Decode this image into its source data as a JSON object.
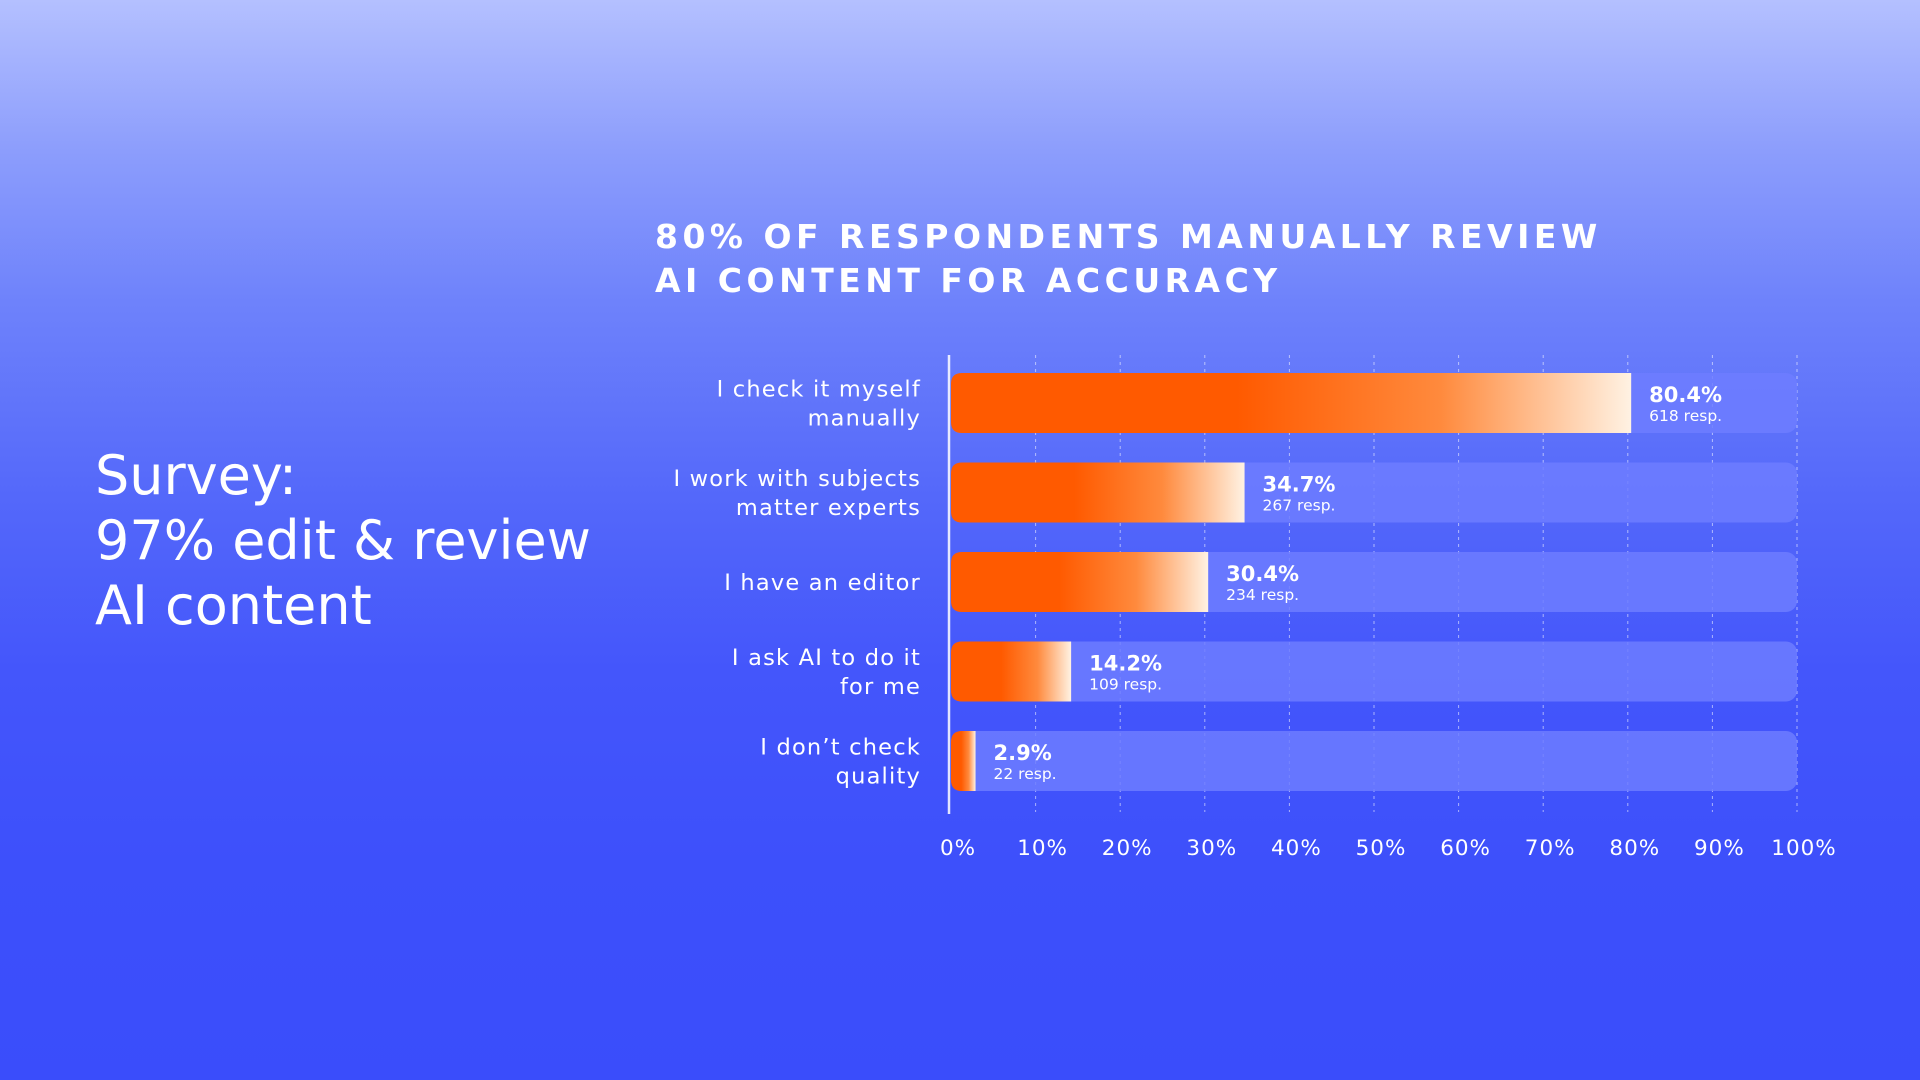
{
  "headline": {
    "lines": [
      "Survey:",
      "97% edit & review",
      "AI content"
    ]
  },
  "colors": {
    "background_top": "#b4c0ff",
    "background_bottom": "#3a4dfb",
    "bar_start": "#ff5a00",
    "bar_end": "#fff2e3",
    "track": "#6d7cff",
    "text": "#ffffff"
  },
  "chart_data": {
    "type": "bar",
    "orientation": "horizontal",
    "title": [
      "80% OF RESPONDENTS MANUALLY REVIEW",
      "AI CONTENT FOR ACCURACY"
    ],
    "categories": [
      [
        "I check it myself",
        "manually"
      ],
      [
        "I work with subjects",
        "matter experts"
      ],
      [
        "I have an editor"
      ],
      [
        "I ask AI to do it",
        "for me"
      ],
      [
        "I don’t check",
        "quality"
      ]
    ],
    "values": [
      80.4,
      34.7,
      30.4,
      14.2,
      2.9
    ],
    "value_labels": [
      "80.4%",
      "34.7%",
      "30.4%",
      "14.2%",
      "2.9%"
    ],
    "responses": [
      "618 resp.",
      "267 resp.",
      "234 resp.",
      "109 resp.",
      "22 resp."
    ],
    "xlim": [
      0,
      100
    ],
    "x_ticks": [
      0,
      10,
      20,
      30,
      40,
      50,
      60,
      70,
      80,
      90,
      100
    ],
    "x_tick_labels": [
      "0%",
      "10%",
      "20%",
      "30%",
      "40%",
      "50%",
      "60%",
      "70%",
      "80%",
      "90%",
      "100%"
    ],
    "grid": true,
    "legend": "none"
  }
}
